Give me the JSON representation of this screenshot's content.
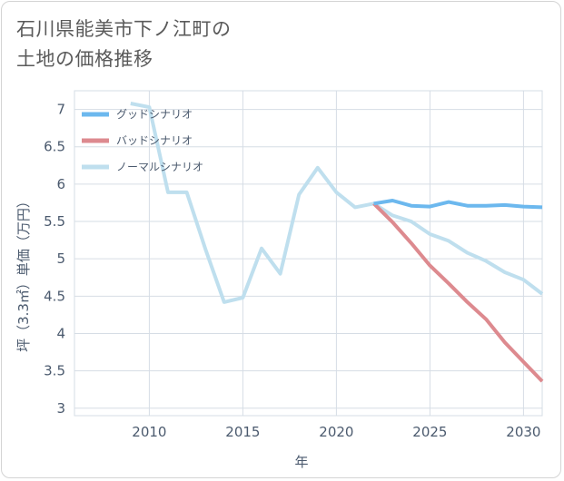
{
  "title_line1": "石川県能美市下ノ江町の",
  "title_line2": "土地の価格推移",
  "chart_data": {
    "type": "line",
    "xlabel": "年",
    "ylabel": "坪（3.3㎡）単価（万円）",
    "xlim": [
      2006,
      2031
    ],
    "ylim": [
      2.9,
      7.25
    ],
    "xticks": [
      2010,
      2015,
      2020,
      2025,
      2030
    ],
    "yticks": [
      3,
      3.5,
      4,
      4.5,
      5,
      5.5,
      6,
      6.5,
      7
    ],
    "grid": true,
    "legend_position": "top-left",
    "series": [
      {
        "name": "グッドシナリオ",
        "color": "#6cb8ee",
        "x": [
          2022,
          2023,
          2024,
          2025,
          2026,
          2027,
          2028,
          2029,
          2030,
          2031
        ],
        "y": [
          5.74,
          5.78,
          5.71,
          5.7,
          5.76,
          5.71,
          5.71,
          5.72,
          5.7,
          5.69
        ]
      },
      {
        "name": "バッドシナリオ",
        "color": "#dd8a8f",
        "x": [
          2022,
          2023,
          2024,
          2025,
          2026,
          2027,
          2028,
          2029,
          2030,
          2031
        ],
        "y": [
          5.74,
          5.49,
          5.21,
          4.91,
          4.67,
          4.42,
          4.19,
          3.88,
          3.62,
          3.36
        ]
      },
      {
        "name": "ノーマルシナリオ",
        "color": "#bfdfee",
        "x": [
          2009,
          2010,
          2011,
          2012,
          2013,
          2014,
          2015,
          2016,
          2017,
          2018,
          2019,
          2020,
          2021,
          2022,
          2023,
          2024,
          2025,
          2026,
          2027,
          2028,
          2029,
          2030,
          2031
        ],
        "y": [
          7.08,
          7.03,
          5.89,
          5.89,
          5.13,
          4.42,
          4.48,
          5.14,
          4.8,
          5.86,
          6.22,
          5.89,
          5.69,
          5.74,
          5.58,
          5.5,
          5.33,
          5.24,
          5.08,
          4.97,
          4.82,
          4.72,
          4.53
        ]
      }
    ]
  }
}
